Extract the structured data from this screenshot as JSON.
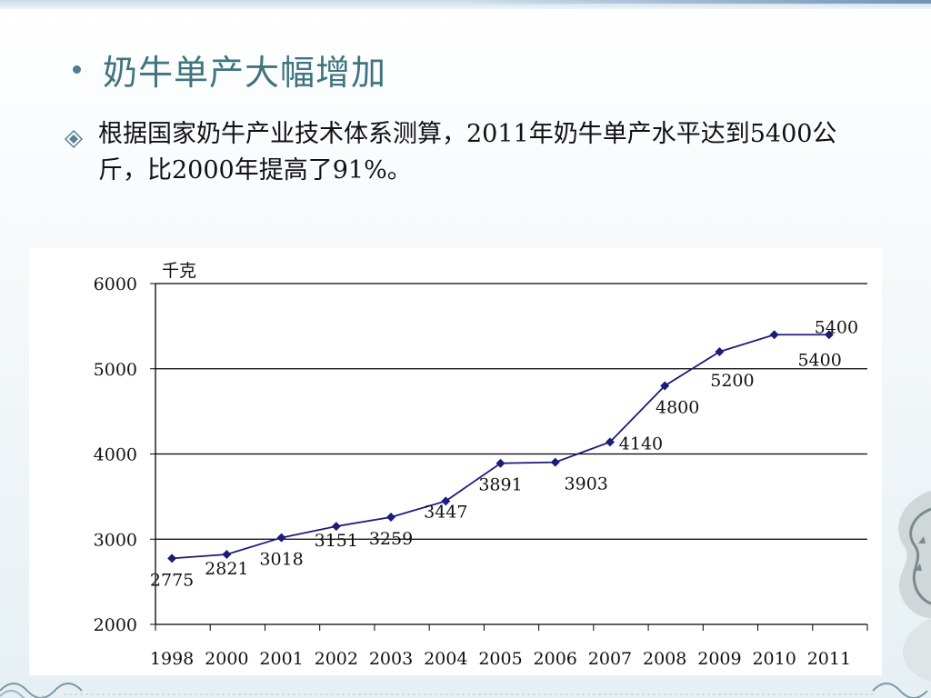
{
  "slide": {
    "title": "奶牛单产大幅增加",
    "paragraph": "根据国家奶牛产业技术体系测算，2011年奶牛单产水平达到5400公斤，比2000年提高了91%。",
    "bullet_icon": "diamond-bullet-icon",
    "title_color": "#3f7481"
  },
  "chart_data": {
    "type": "line",
    "ylabel": "千克",
    "ylim": [
      2000,
      6000
    ],
    "yticks": [
      2000,
      3000,
      4000,
      5000,
      6000
    ],
    "grid": true,
    "categories": [
      "1998",
      "2000",
      "2001",
      "2002",
      "2003",
      "2004",
      "2005",
      "2006",
      "2007",
      "2008",
      "2009",
      "2010",
      "2011"
    ],
    "series": [
      {
        "values": [
          2775,
          2821,
          3018,
          3151,
          3259,
          3447,
          3891,
          3903,
          4140,
          4800,
          5200,
          5400,
          5400
        ],
        "color": "#1c1c7a"
      }
    ]
  }
}
